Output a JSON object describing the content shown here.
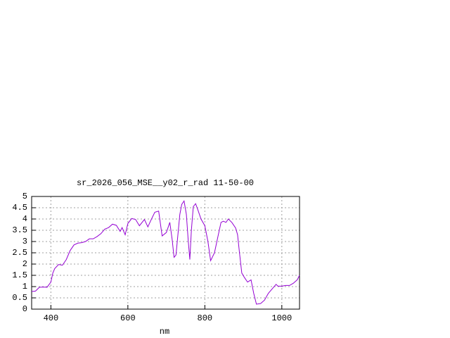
{
  "chart_data": {
    "type": "line",
    "title": "sr_2026_056_MSE__y02_r_rad 11-50-00",
    "x_label": "nm",
    "x": [
      350,
      360,
      370,
      380,
      390,
      400,
      405,
      410,
      420,
      430,
      440,
      450,
      460,
      470,
      480,
      490,
      500,
      510,
      520,
      530,
      540,
      550,
      560,
      570,
      580,
      585,
      593,
      600,
      610,
      620,
      630,
      643,
      652,
      660,
      670,
      680,
      689,
      700,
      709,
      715,
      720,
      725,
      730,
      735,
      740,
      746,
      752,
      757,
      761,
      765,
      770,
      776,
      782,
      790,
      800,
      808,
      815,
      825,
      835,
      842,
      848,
      855,
      861,
      870,
      880,
      885,
      890,
      896,
      903,
      911,
      920,
      927,
      934,
      945,
      955,
      965,
      975,
      985,
      990,
      1000,
      1010,
      1020,
      1030,
      1040,
      1046
    ],
    "series": [
      {
        "name": "sr_2026_056_MSE__y02_r_rad 11-50-00",
        "color": "#9400d3",
        "values": [
          0.78,
          0.8,
          0.97,
          0.98,
          0.97,
          1.2,
          1.6,
          1.8,
          1.98,
          1.95,
          2.2,
          2.6,
          2.85,
          2.93,
          2.95,
          3.0,
          3.12,
          3.12,
          3.22,
          3.35,
          3.55,
          3.62,
          3.77,
          3.72,
          3.45,
          3.62,
          3.3,
          3.8,
          4.02,
          3.98,
          3.7,
          3.98,
          3.65,
          3.95,
          4.3,
          4.35,
          3.25,
          3.4,
          3.85,
          3.1,
          2.3,
          2.4,
          3.3,
          4.2,
          4.65,
          4.8,
          4.2,
          3.0,
          2.2,
          3.5,
          4.55,
          4.68,
          4.4,
          4.0,
          3.7,
          3.0,
          2.15,
          2.5,
          3.3,
          3.85,
          3.9,
          3.85,
          4.0,
          3.85,
          3.6,
          3.3,
          2.5,
          1.6,
          1.4,
          1.2,
          1.3,
          0.7,
          0.22,
          0.25,
          0.4,
          0.7,
          0.9,
          1.1,
          1.02,
          1.02,
          1.05,
          1.05,
          1.15,
          1.3,
          1.5
        ]
      }
    ],
    "xlim": [
      350,
      1046
    ],
    "ylim": [
      0,
      5
    ],
    "xticks": [
      400,
      600,
      800,
      1000
    ],
    "yticks": [
      0,
      0.5,
      1,
      1.5,
      2,
      2.5,
      3,
      3.5,
      4,
      4.5,
      5
    ],
    "grid": true
  }
}
